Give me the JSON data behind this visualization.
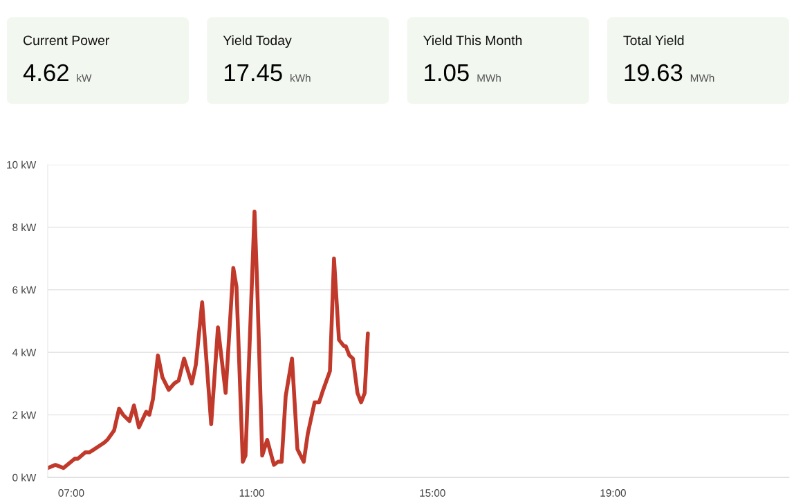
{
  "chart_data": [
    {
      "type": "other",
      "categories": [
        "Current Power",
        "Yield Today",
        "Yield This Month",
        "Total Yield"
      ],
      "values": [
        4.62,
        17.45,
        1.05,
        19.63
      ],
      "value_labels": [
        "4.62 kW",
        "17.45 kWh",
        "1.05 MWh",
        "19.63 MWh"
      ],
      "color": "#f2f7f0"
    },
    {
      "type": "line",
      "grid": "y",
      "line_style": "solid",
      "marker": "none",
      "series": [
        {
          "color": "#c0392b",
          "x": [
            6.48,
            6.65,
            6.83,
            7.08,
            7.15,
            7.31,
            7.4,
            7.51,
            7.72,
            7.8,
            7.95,
            8.06,
            8.15,
            8.29,
            8.39,
            8.5,
            8.66,
            8.73,
            8.81,
            8.92,
            9.02,
            9.16,
            9.28,
            9.38,
            9.5,
            9.67,
            9.76,
            9.9,
            10.1,
            10.25,
            10.42,
            10.59,
            10.66,
            10.8,
            10.86,
            11.06,
            11.12,
            11.23,
            11.34,
            11.49,
            11.58,
            11.66,
            11.75,
            11.89,
            12.01,
            12.15,
            12.24,
            12.39,
            12.49,
            12.58,
            12.73,
            12.82,
            12.93,
            13.04,
            13.08,
            13.16,
            13.24,
            13.34,
            13.42,
            13.5,
            13.57
          ],
          "values": [
            0.3,
            0.4,
            0.3,
            0.6,
            0.6,
            0.8,
            0.8,
            0.9,
            1.1,
            1.2,
            1.5,
            2.2,
            2.0,
            1.8,
            2.3,
            1.6,
            2.1,
            2.0,
            2.5,
            3.9,
            3.2,
            2.8,
            3.0,
            3.1,
            3.8,
            3.0,
            3.6,
            5.6,
            1.7,
            4.8,
            2.7,
            6.7,
            6.1,
            0.5,
            0.7,
            8.5,
            6.1,
            0.7,
            1.2,
            0.4,
            0.5,
            0.5,
            2.6,
            3.8,
            0.9,
            0.5,
            1.4,
            2.4,
            2.4,
            2.8,
            3.4,
            7.0,
            4.4,
            4.2,
            4.2,
            3.9,
            3.8,
            2.7,
            2.4,
            2.7,
            4.6
          ]
        }
      ],
      "xlim": [
        6.48,
        22.9
      ],
      "xticks": [
        {
          "value": 7,
          "label": "07:00"
        },
        {
          "value": 11,
          "label": "11:00"
        },
        {
          "value": 15,
          "label": "15:00"
        },
        {
          "value": 19,
          "label": "19:00"
        }
      ],
      "ylim": [
        0,
        10
      ],
      "yticks": [
        {
          "value": 0,
          "label": "0 kW"
        },
        {
          "value": 2,
          "label": "2 kW"
        },
        {
          "value": 4,
          "label": "4 kW"
        },
        {
          "value": 6,
          "label": "6 kW"
        },
        {
          "value": 8,
          "label": "8 kW"
        },
        {
          "value": 10,
          "label": "10 kW"
        }
      ]
    }
  ]
}
